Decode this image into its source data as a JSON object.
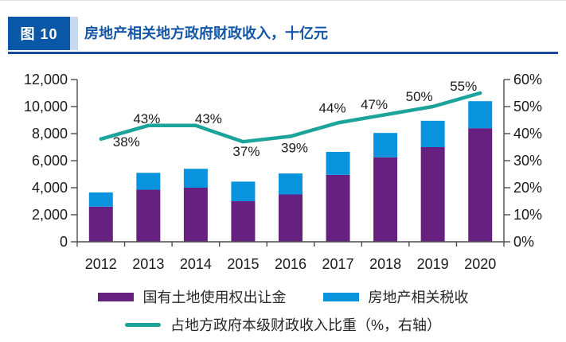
{
  "header": {
    "figure_label": "图 10",
    "title": "房地产相关地方政府财政收入，十亿元"
  },
  "colors": {
    "badge_bg": "#0A57A7",
    "badge_strip": "#C7DAF1",
    "title_text": "#1456A6",
    "header_rule": "#1B479E",
    "bar_land": "#662180",
    "bar_tax": "#0993DC",
    "ratio_line": "#1BA39C",
    "axis": "#4d4d4d",
    "label_text": "#1a1a1a"
  },
  "chart_data": {
    "type": "combo",
    "title": "房地产相关地方政府财政收入，十亿元",
    "unit": "十亿元",
    "categories": [
      "2012",
      "2013",
      "2014",
      "2015",
      "2016",
      "2017",
      "2018",
      "2019",
      "2020"
    ],
    "series": [
      {
        "name": "国有土地使用权出让金",
        "type": "bar",
        "stack": true,
        "axis": "left",
        "color": "#662180",
        "values": [
          2600,
          3850,
          4000,
          3000,
          3500,
          4950,
          6250,
          7000,
          8400
        ]
      },
      {
        "name": "房地产相关税收",
        "type": "bar",
        "stack": true,
        "axis": "left",
        "color": "#0993DC",
        "values": [
          1050,
          1250,
          1400,
          1450,
          1550,
          1700,
          1800,
          1950,
          2000
        ]
      },
      {
        "name": "占地方政府本级财政收入比重（%，右轴）",
        "type": "line",
        "axis": "right",
        "color": "#1BA39C",
        "values": [
          38,
          43,
          43,
          37,
          39,
          44,
          47,
          50,
          55
        ],
        "point_labels": [
          "38%",
          "43%",
          "43%",
          "37%",
          "39%",
          "44%",
          "47%",
          "50%",
          "55%"
        ]
      }
    ],
    "left_axis": {
      "min": 0,
      "max": 12000,
      "step": 2000,
      "tick_labels": [
        "0",
        "2,000",
        "4,000",
        "6,000",
        "8,000",
        "10,000",
        "12,000"
      ]
    },
    "right_axis": {
      "min": 0,
      "max": 60,
      "step": 10,
      "tick_labels": [
        "0%",
        "10%",
        "20%",
        "30%",
        "40%",
        "50%",
        "60%"
      ]
    },
    "grid": false,
    "legend_position": "bottom"
  }
}
